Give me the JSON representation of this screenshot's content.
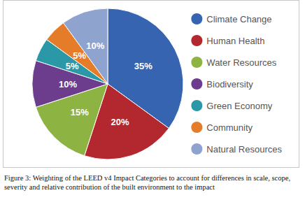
{
  "chart_data": {
    "type": "pie",
    "caption": "Figure 3: Weighting of the LEED v4 Impact Categories to account for differences in scale, scope, severity and relative contribution of the built environment to the impact",
    "categories": [
      "Climate Change",
      "Human Health",
      "Water Resources",
      "Biodiversity",
      "Green Economy",
      "Community",
      "Natural Resources"
    ],
    "values": [
      35,
      20,
      15,
      10,
      5,
      5,
      10
    ],
    "value_labels": [
      "35%",
      "20%",
      "15%",
      "10%",
      "5%",
      "5%",
      "10%"
    ],
    "colors": [
      "#3764b0",
      "#b3282e",
      "#8db443",
      "#6b3d8c",
      "#2b98a8",
      "#e57c2a",
      "#8fa3cf"
    ],
    "data_labels": true,
    "legend": "right"
  }
}
